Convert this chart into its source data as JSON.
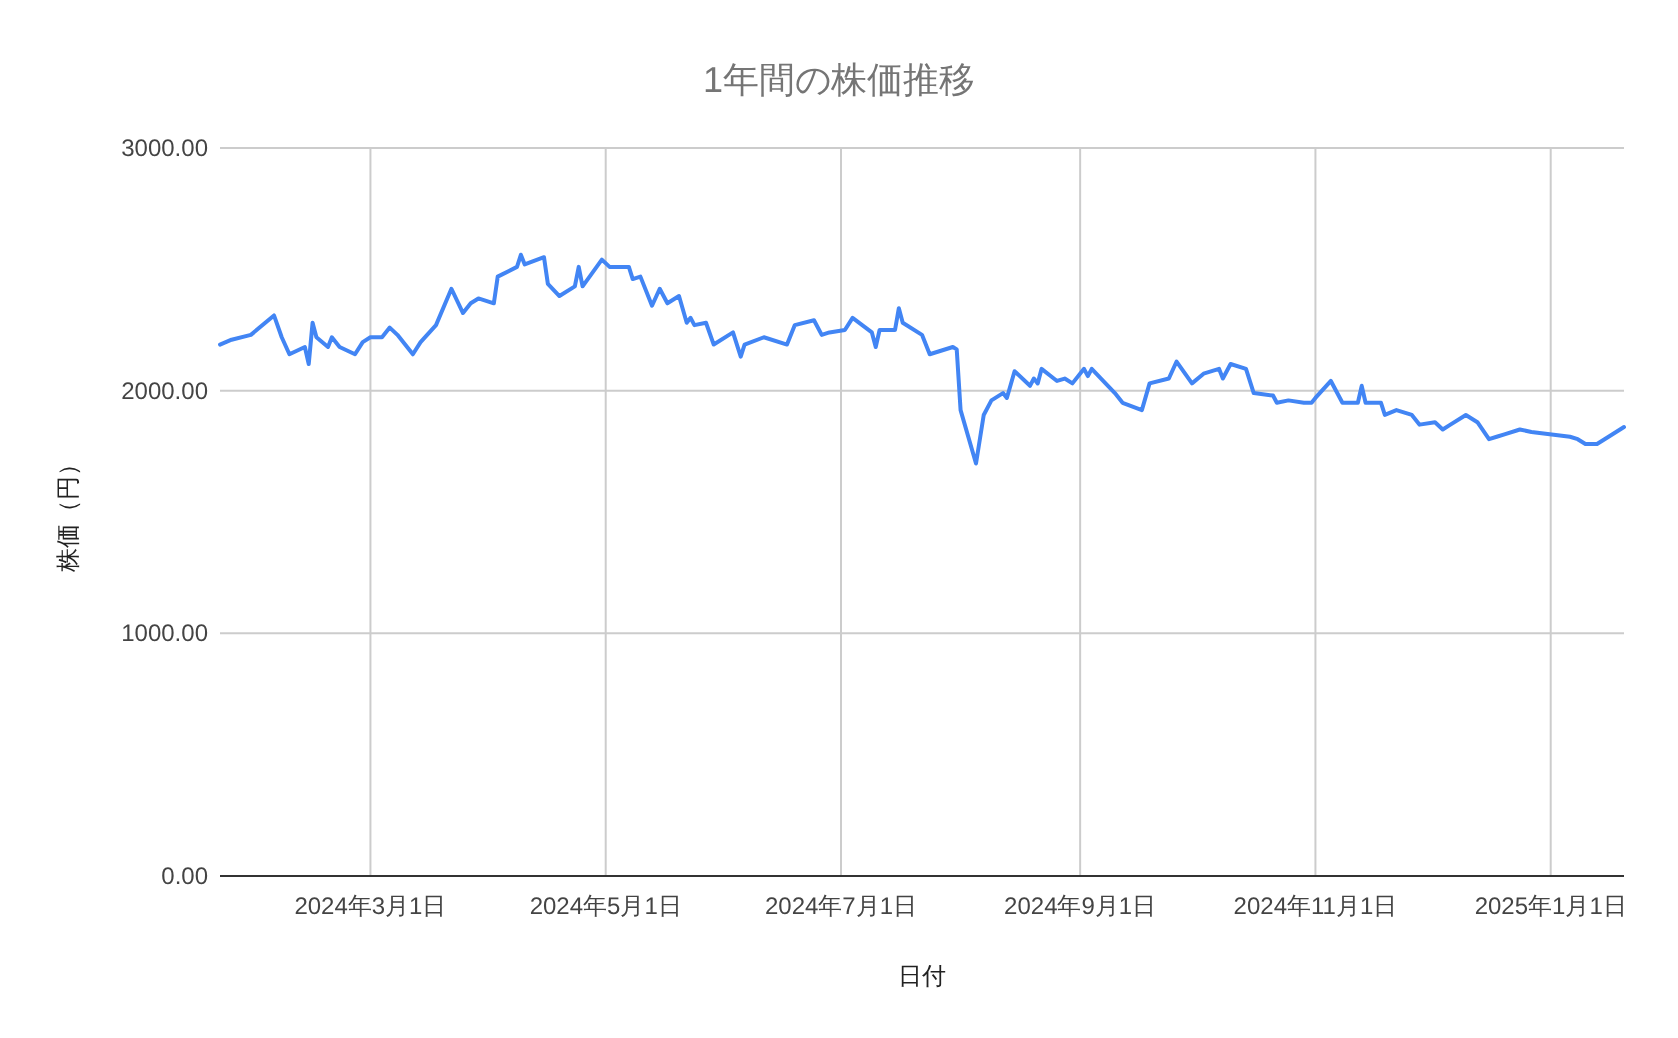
{
  "chart_data": {
    "type": "line",
    "title": "1年間の株価推移",
    "xlabel": "日付",
    "ylabel": "株価（円）",
    "x": [
      "2024-01-22",
      "2024-01-25",
      "2024-01-30",
      "2024-02-05",
      "2024-02-07",
      "2024-02-09",
      "2024-02-13",
      "2024-02-14",
      "2024-02-15",
      "2024-02-16",
      "2024-02-19",
      "2024-02-20",
      "2024-02-22",
      "2024-02-26",
      "2024-02-28",
      "2024-03-01",
      "2024-03-04",
      "2024-03-06",
      "2024-03-08",
      "2024-03-12",
      "2024-03-14",
      "2024-03-18",
      "2024-03-22",
      "2024-03-25",
      "2024-03-27",
      "2024-03-29",
      "2024-04-02",
      "2024-04-03",
      "2024-04-08",
      "2024-04-09",
      "2024-04-10",
      "2024-04-15",
      "2024-04-16",
      "2024-04-19",
      "2024-04-23",
      "2024-04-24",
      "2024-04-25",
      "2024-04-30",
      "2024-05-02",
      "2024-05-07",
      "2024-05-08",
      "2024-05-10",
      "2024-05-13",
      "2024-05-15",
      "2024-05-17",
      "2024-05-20",
      "2024-05-22",
      "2024-05-23",
      "2024-05-24",
      "2024-05-27",
      "2024-05-29",
      "2024-06-03",
      "2024-06-05",
      "2024-06-06",
      "2024-06-11",
      "2024-06-17",
      "2024-06-19",
      "2024-06-24",
      "2024-06-26",
      "2024-06-28",
      "2024-07-02",
      "2024-07-04",
      "2024-07-09",
      "2024-07-10",
      "2024-07-11",
      "2024-07-15",
      "2024-07-16",
      "2024-07-17",
      "2024-07-22",
      "2024-07-24",
      "2024-07-30",
      "2024-07-31",
      "2024-08-01",
      "2024-08-05",
      "2024-08-07",
      "2024-08-09",
      "2024-08-12",
      "2024-08-13",
      "2024-08-15",
      "2024-08-19",
      "2024-08-20",
      "2024-08-21",
      "2024-08-22",
      "2024-08-26",
      "2024-08-28",
      "2024-08-30",
      "2024-09-02",
      "2024-09-03",
      "2024-09-04",
      "2024-09-10",
      "2024-09-12",
      "2024-09-17",
      "2024-09-19",
      "2024-09-24",
      "2024-09-26",
      "2024-09-30",
      "2024-10-03",
      "2024-10-07",
      "2024-10-08",
      "2024-10-10",
      "2024-10-14",
      "2024-10-16",
      "2024-10-21",
      "2024-10-22",
      "2024-10-25",
      "2024-10-29",
      "2024-10-31",
      "2024-11-01",
      "2024-11-05",
      "2024-11-08",
      "2024-11-12",
      "2024-11-13",
      "2024-11-14",
      "2024-11-18",
      "2024-11-19",
      "2024-11-22",
      "2024-11-26",
      "2024-11-28",
      "2024-12-02",
      "2024-12-04",
      "2024-12-06",
      "2024-12-10",
      "2024-12-13",
      "2024-12-16",
      "2024-12-18",
      "2024-12-20",
      "2024-12-24",
      "2024-12-27",
      "2025-01-06",
      "2025-01-08",
      "2025-01-10",
      "2025-01-13",
      "2025-01-16",
      "2025-01-20"
    ],
    "series": [
      {
        "color": "#4285f4",
        "values": [
          2190,
          2210,
          2230,
          2310,
          2220,
          2150,
          2180,
          2110,
          2280,
          2220,
          2180,
          2220,
          2180,
          2150,
          2200,
          2220,
          2220,
          2260,
          2230,
          2150,
          2200,
          2270,
          2420,
          2320,
          2360,
          2380,
          2360,
          2470,
          2510,
          2560,
          2520,
          2550,
          2440,
          2390,
          2430,
          2510,
          2430,
          2540,
          2510,
          2510,
          2460,
          2470,
          2350,
          2420,
          2360,
          2390,
          2280,
          2300,
          2270,
          2280,
          2190,
          2240,
          2140,
          2190,
          2220,
          2190,
          2270,
          2290,
          2230,
          2240,
          2250,
          2300,
          2240,
          2180,
          2250,
          2250,
          2340,
          2280,
          2230,
          2150,
          2180,
          2170,
          1920,
          1700,
          1900,
          1960,
          1990,
          1970,
          2080,
          2020,
          2050,
          2030,
          2090,
          2040,
          2050,
          2030,
          2090,
          2060,
          2090,
          1990,
          1950,
          1920,
          2030,
          2050,
          2120,
          2030,
          2070,
          2090,
          2050,
          2110,
          2090,
          1990,
          1980,
          1950,
          1960,
          1950,
          1950,
          1970,
          2040,
          1950,
          1950,
          2020,
          1950,
          1950,
          1900,
          1920,
          1900,
          1860,
          1870,
          1840,
          1860,
          1900,
          1870,
          1800,
          1810,
          1820,
          1840,
          1830,
          1810,
          1800,
          1780,
          1780,
          1810,
          1850
        ]
      }
    ],
    "xlim": [
      "2024-01-22",
      "2025-01-20"
    ],
    "xticks": [
      {
        "value": "2024-03-01",
        "label": "2024年3月1日"
      },
      {
        "value": "2024-05-01",
        "label": "2024年5月1日"
      },
      {
        "value": "2024-07-01",
        "label": "2024年7月1日"
      },
      {
        "value": "2024-09-01",
        "label": "2024年9月1日"
      },
      {
        "value": "2024-11-01",
        "label": "2024年11月1日"
      },
      {
        "value": "2025-01-01",
        "label": "2025年1月1日"
      }
    ],
    "ylim": [
      0,
      3000
    ],
    "yticks": [
      {
        "value": 0,
        "label": "0.00"
      },
      {
        "value": 1000,
        "label": "1000.00"
      },
      {
        "value": 2000,
        "label": "2000.00"
      },
      {
        "value": 3000,
        "label": "3000.00"
      }
    ],
    "grid": true,
    "line_style": "solid"
  }
}
